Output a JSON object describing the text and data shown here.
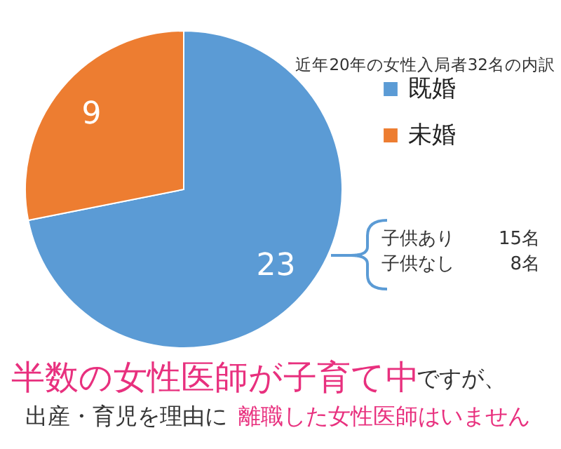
{
  "chart_data": {
    "type": "pie",
    "title": "近年20年の女性入局者32名の内訳",
    "categories": [
      "既婚",
      "未婚"
    ],
    "values": [
      23,
      9
    ],
    "colors": [
      "#5b9bd5",
      "#ed7d31"
    ],
    "data_labels": true,
    "legend": "top right",
    "annotations": [
      "子供あり",
      "15名",
      "子供なし",
      "8名",
      "半数の女性医師が子育て中",
      "ですが、",
      "出産・育児を理由に",
      "離職した女性医師はいません"
    ]
  }
}
